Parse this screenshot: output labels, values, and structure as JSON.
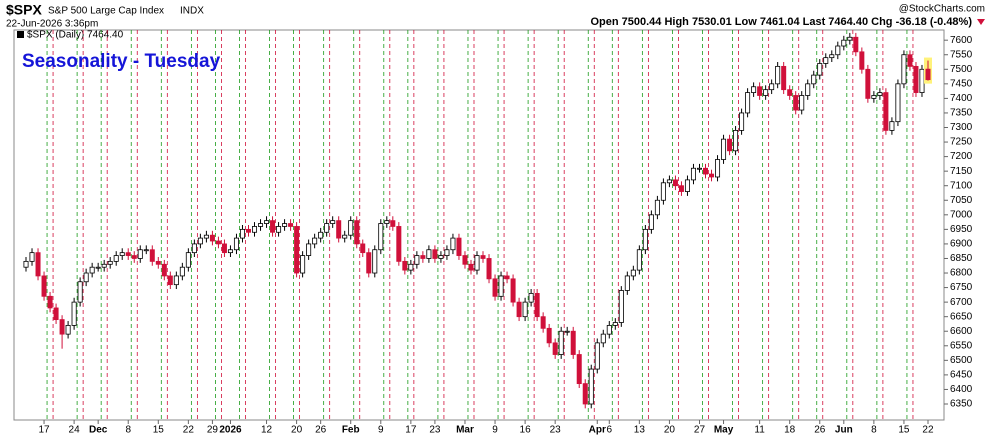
{
  "header": {
    "symbol": "$SPX",
    "name": "S&P 500 Large Cap Index",
    "exchange": "INDX",
    "timestamp": "22-Jun-2026 3:36pm",
    "quote": "Open 7500.44 High 7530.01 Low 7461.04 Last 7464.40 Chg -36.18 (-0.48%)",
    "credit": "@StockCharts.com"
  },
  "chart_data": {
    "type": "candlestick",
    "annotation": "Seasonality - Tuesday",
    "series_name": "$SPX (Daily) 7464.40",
    "up_color": "#000000",
    "down_color": "#d0103a",
    "last_highlight": "#fff27a",
    "grid": false,
    "categories": [
      null,
      null,
      null,
      "17",
      null,
      null,
      null,
      null,
      "24",
      null,
      null,
      null,
      "Dec",
      null,
      null,
      null,
      null,
      "8",
      null,
      null,
      null,
      null,
      "15",
      null,
      null,
      null,
      null,
      "22",
      null,
      null,
      null,
      "29",
      null,
      null,
      "2026",
      null,
      null,
      null,
      null,
      null,
      "12",
      null,
      null,
      null,
      null,
      "20",
      null,
      null,
      null,
      "26",
      null,
      null,
      null,
      null,
      "Feb",
      null,
      null,
      null,
      null,
      "9",
      null,
      null,
      null,
      null,
      "17",
      null,
      null,
      null,
      "23",
      null,
      null,
      null,
      null,
      "Mar",
      null,
      null,
      null,
      null,
      "9",
      null,
      null,
      null,
      null,
      "16",
      null,
      null,
      null,
      null,
      "23",
      null,
      null,
      null,
      null,
      null,
      null,
      "Apr",
      null,
      "6",
      null,
      null,
      null,
      null,
      "13",
      null,
      null,
      null,
      null,
      "20",
      null,
      null,
      null,
      null,
      "27",
      null,
      null,
      null,
      "May",
      null,
      null,
      null,
      null,
      null,
      "11",
      null,
      null,
      null,
      null,
      "18",
      null,
      null,
      null,
      null,
      "26",
      null,
      null,
      null,
      "Jun",
      null,
      null,
      null,
      null,
      "8",
      null,
      null,
      null,
      null,
      "15",
      null,
      null,
      null,
      "22"
    ],
    "open": [
      6820,
      6840,
      6870,
      6790,
      6720,
      6680,
      6640,
      6590,
      6620,
      6700,
      6770,
      6800,
      6820,
      6820,
      6830,
      6840,
      6860,
      6870,
      6860,
      6850,
      6880,
      6880,
      6840,
      6830,
      6790,
      6760,
      6790,
      6820,
      6870,
      6900,
      6920,
      6930,
      6910,
      6900,
      6870,
      6880,
      6920,
      6950,
      6940,
      6960,
      6970,
      6980,
      6940,
      6960,
      6970,
      6960,
      6800,
      6860,
      6900,
      6920,
      6940,
      6970,
      6980,
      6920,
      6930,
      6980,
      6900,
      6870,
      6800,
      6880,
      6970,
      6980,
      6960,
      6840,
      6810,
      6830,
      6860,
      6850,
      6880,
      6850,
      6860,
      6880,
      6920,
      6860,
      6830,
      6810,
      6860,
      6850,
      6780,
      6720,
      6790,
      6780,
      6700,
      6650,
      6700,
      6730,
      6650,
      6610,
      6560,
      6520,
      6600,
      6600,
      6520,
      6420,
      6350,
      6470,
      6560,
      6590,
      6620,
      6630,
      6740,
      6790,
      6810,
      6880,
      6950,
      7000,
      7050,
      7110,
      7120,
      7100,
      7080,
      7120,
      7160,
      7160,
      7140,
      7130,
      7190,
      7260,
      7220,
      7290,
      7350,
      7420,
      7440,
      7410,
      7430,
      7450,
      7510,
      7430,
      7410,
      7360,
      7410,
      7450,
      7480,
      7520,
      7540,
      7550,
      7580,
      7600,
      7610,
      7560,
      7500,
      7400,
      7410,
      7420,
      7290,
      7320,
      7450,
      7550,
      7510,
      7420,
      7500.44
    ],
    "high": [
      6855,
      6885,
      6885,
      6805,
      6735,
      6695,
      6655,
      6635,
      6715,
      6785,
      6815,
      6835,
      6835,
      6845,
      6855,
      6875,
      6885,
      6885,
      6875,
      6895,
      6895,
      6895,
      6855,
      6845,
      6805,
      6805,
      6835,
      6885,
      6915,
      6935,
      6945,
      6945,
      6925,
      6915,
      6895,
      6935,
      6965,
      6965,
      6975,
      6985,
      6995,
      6995,
      6975,
      6985,
      6985,
      6975,
      6875,
      6915,
      6935,
      6955,
      6985,
      6995,
      6995,
      6945,
      6995,
      6995,
      6915,
      6885,
      6895,
      6985,
      6995,
      6995,
      6975,
      6855,
      6845,
      6875,
      6875,
      6895,
      6895,
      6875,
      6895,
      6935,
      6935,
      6875,
      6845,
      6875,
      6875,
      6865,
      6795,
      6805,
      6805,
      6795,
      6715,
      6715,
      6745,
      6745,
      6665,
      6625,
      6575,
      6615,
      6615,
      6615,
      6535,
      6435,
      6485,
      6575,
      6605,
      6635,
      6645,
      6755,
      6805,
      6825,
      6895,
      6965,
      7015,
      7065,
      7125,
      7135,
      7135,
      7115,
      7135,
      7175,
      7175,
      7175,
      7155,
      7205,
      7275,
      7275,
      7305,
      7365,
      7435,
      7455,
      7455,
      7445,
      7465,
      7525,
      7525,
      7445,
      7425,
      7425,
      7465,
      7495,
      7535,
      7555,
      7565,
      7595,
      7615,
      7625,
      7625,
      7575,
      7515,
      7425,
      7435,
      7435,
      7335,
      7465,
      7565,
      7565,
      7525,
      7515,
      7530.01
    ],
    "low": [
      6805,
      6825,
      6775,
      6705,
      6665,
      6625,
      6540,
      6575,
      6605,
      6685,
      6755,
      6785,
      6805,
      6805,
      6815,
      6825,
      6845,
      6845,
      6835,
      6835,
      6865,
      6825,
      6815,
      6775,
      6745,
      6745,
      6775,
      6805,
      6855,
      6885,
      6905,
      6895,
      6885,
      6855,
      6855,
      6865,
      6905,
      6925,
      6925,
      6945,
      6955,
      6925,
      6925,
      6945,
      6945,
      6785,
      6785,
      6845,
      6885,
      6905,
      6925,
      6955,
      6905,
      6905,
      6915,
      6885,
      6855,
      6785,
      6785,
      6865,
      6955,
      6945,
      6825,
      6795,
      6795,
      6815,
      6835,
      6835,
      6835,
      6835,
      6845,
      6865,
      6845,
      6815,
      6795,
      6795,
      6835,
      6765,
      6705,
      6705,
      6765,
      6685,
      6635,
      6635,
      6685,
      6635,
      6595,
      6545,
      6505,
      6505,
      6585,
      6505,
      6405,
      6335,
      6335,
      6455,
      6545,
      6575,
      6605,
      6615,
      6725,
      6775,
      6795,
      6865,
      6935,
      6985,
      7035,
      7095,
      7085,
      7065,
      7065,
      7105,
      7145,
      7125,
      7115,
      7115,
      7175,
      7205,
      7205,
      7275,
      7335,
      7405,
      7395,
      7395,
      7415,
      7435,
      7415,
      7395,
      7345,
      7345,
      7395,
      7435,
      7465,
      7505,
      7525,
      7535,
      7565,
      7585,
      7545,
      7485,
      7385,
      7385,
      7395,
      7275,
      7275,
      7305,
      7435,
      7495,
      7405,
      7405,
      7461.04
    ],
    "close": [
      6840,
      6870,
      6790,
      6720,
      6680,
      6640,
      6590,
      6620,
      6700,
      6770,
      6800,
      6820,
      6820,
      6830,
      6840,
      6860,
      6870,
      6860,
      6850,
      6880,
      6880,
      6840,
      6830,
      6790,
      6760,
      6790,
      6820,
      6870,
      6900,
      6920,
      6930,
      6910,
      6900,
      6870,
      6880,
      6920,
      6950,
      6940,
      6960,
      6970,
      6980,
      6940,
      6960,
      6970,
      6960,
      6800,
      6860,
      6900,
      6920,
      6940,
      6970,
      6980,
      6920,
      6930,
      6980,
      6900,
      6870,
      6800,
      6880,
      6970,
      6980,
      6960,
      6840,
      6810,
      6830,
      6860,
      6850,
      6880,
      6850,
      6860,
      6880,
      6920,
      6860,
      6830,
      6810,
      6860,
      6850,
      6780,
      6720,
      6790,
      6780,
      6700,
      6650,
      6700,
      6730,
      6650,
      6610,
      6560,
      6520,
      6600,
      6600,
      6520,
      6420,
      6350,
      6470,
      6560,
      6590,
      6620,
      6630,
      6740,
      6790,
      6810,
      6880,
      6950,
      7000,
      7050,
      7110,
      7120,
      7100,
      7080,
      7120,
      7160,
      7160,
      7140,
      7130,
      7190,
      7260,
      7220,
      7290,
      7350,
      7420,
      7440,
      7410,
      7430,
      7450,
      7510,
      7430,
      7410,
      7360,
      7410,
      7450,
      7480,
      7520,
      7540,
      7550,
      7580,
      7600,
      7610,
      7560,
      7500,
      7400,
      7410,
      7420,
      7290,
      7320,
      7450,
      7550,
      7510,
      7420,
      7500,
      7464.4
    ],
    "ylim": [
      6295,
      7635
    ],
    "yticks": [
      6350,
      6400,
      6450,
      6500,
      6550,
      6600,
      6650,
      6700,
      6750,
      6800,
      6850,
      6900,
      6950,
      7000,
      7050,
      7100,
      7150,
      7200,
      7250,
      7300,
      7350,
      7400,
      7450,
      7500,
      7550,
      7600
    ]
  }
}
